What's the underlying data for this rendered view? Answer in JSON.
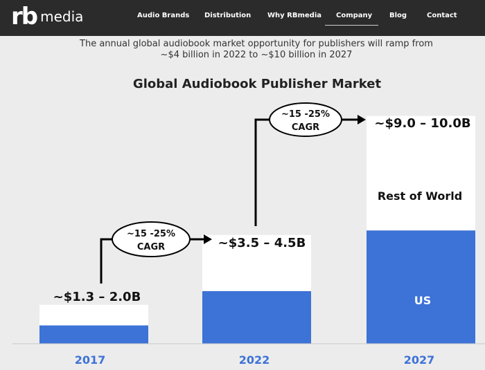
{
  "navbar": {
    "logo_mark": "rb",
    "logo_text": "media",
    "items": [
      {
        "label": "Audio Brands"
      },
      {
        "label": "Distribution"
      },
      {
        "label": "Why RBmedia"
      },
      {
        "label": "Company",
        "active": true
      },
      {
        "label": "Blog"
      },
      {
        "label": "Contact"
      }
    ]
  },
  "intro": {
    "line1": "The annual global audiobook market opportunity for publishers will ramp from",
    "line2": "~$4 billion in 2022 to ~$10 billion in 2027"
  },
  "chart_data": {
    "type": "bar",
    "stacked": true,
    "title": "Global Audiobook Publisher Market",
    "categories": [
      "2017",
      "2022",
      "2027"
    ],
    "series": [
      {
        "name": "US",
        "color": "#3d72d6",
        "values": [
          0.8,
          2.3,
          4.95
        ]
      },
      {
        "name": "Rest of World",
        "color": "#ffffff",
        "values": [
          0.9,
          2.45,
          5.0
        ]
      }
    ],
    "totals": [
      "~$1.3 – 2.0B",
      "~$3.5 – 4.5B",
      "~$9.0 – 10.0B"
    ],
    "segment_labels": {
      "category": "2027",
      "US": "US",
      "Rest of World": "Rest of World"
    },
    "cagr_callouts": [
      {
        "line1": "~15 -25%",
        "line2": "CAGR"
      },
      {
        "line1": "~15 -25%",
        "line2": "CAGR"
      }
    ],
    "ylim": [
      0,
      10
    ],
    "grid": false,
    "legend": "none",
    "colors": {
      "year_label": "#3d72d6",
      "bar_base": "#3d72d6",
      "bar_top": "#ffffff"
    }
  }
}
